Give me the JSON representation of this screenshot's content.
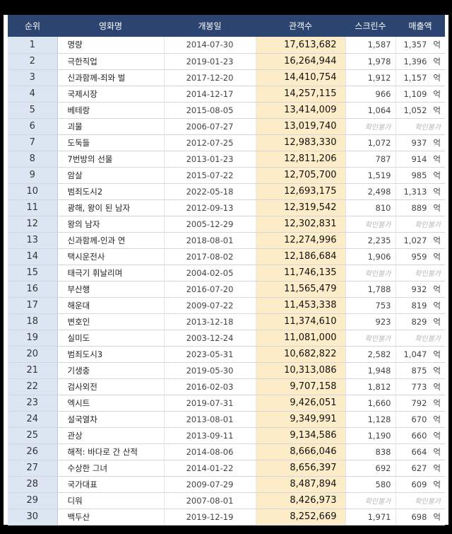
{
  "headers": {
    "rank": "순위",
    "title": "영화명",
    "release": "개봉일",
    "audience": "관객수",
    "screens": "스크린수",
    "revenue": "매출액"
  },
  "revenue_unit": "억",
  "not_confirmed": "확인불가",
  "colors": {
    "header_bg": "#2c4470",
    "rank_col_bg": "#dce6f2",
    "audience_col_bg": "#fdecc8"
  },
  "rows": [
    {
      "rank": "1",
      "title": "명량",
      "release": "2014-07-30",
      "audience": "17,613,682",
      "screens": "1,587",
      "revenue": "1,357"
    },
    {
      "rank": "2",
      "title": "극한직업",
      "release": "2019-01-23",
      "audience": "16,264,944",
      "screens": "1,978",
      "revenue": "1,396"
    },
    {
      "rank": "3",
      "title": "신과함께-죄와 벌",
      "release": "2017-12-20",
      "audience": "14,410,754",
      "screens": "1,912",
      "revenue": "1,157"
    },
    {
      "rank": "4",
      "title": "국제시장",
      "release": "2014-12-17",
      "audience": "14,257,115",
      "screens": "966",
      "revenue": "1,109"
    },
    {
      "rank": "5",
      "title": "베테랑",
      "release": "2015-08-05",
      "audience": "13,414,009",
      "screens": "1,064",
      "revenue": "1,052"
    },
    {
      "rank": "6",
      "title": "괴물",
      "release": "2006-07-27",
      "audience": "13,019,740",
      "screens": null,
      "revenue": null
    },
    {
      "rank": "7",
      "title": "도둑들",
      "release": "2012-07-25",
      "audience": "12,983,330",
      "screens": "1,072",
      "revenue": "937"
    },
    {
      "rank": "8",
      "title": "7번방의 선물",
      "release": "2013-01-23",
      "audience": "12,811,206",
      "screens": "787",
      "revenue": "914"
    },
    {
      "rank": "9",
      "title": "암살",
      "release": "2015-07-22",
      "audience": "12,705,700",
      "screens": "1,519",
      "revenue": "985"
    },
    {
      "rank": "10",
      "title": "범죄도시2",
      "release": "2022-05-18",
      "audience": "12,693,175",
      "screens": "2,498",
      "revenue": "1,313"
    },
    {
      "rank": "11",
      "title": "광해, 왕이 된 남자",
      "release": "2012-09-13",
      "audience": "12,319,542",
      "screens": "810",
      "revenue": "889"
    },
    {
      "rank": "12",
      "title": "왕의 남자",
      "release": "2005-12-29",
      "audience": "12,302,831",
      "screens": null,
      "revenue": null
    },
    {
      "rank": "13",
      "title": "신과함께-인과 연",
      "release": "2018-08-01",
      "audience": "12,274,996",
      "screens": "2,235",
      "revenue": "1,027"
    },
    {
      "rank": "14",
      "title": "택시운전사",
      "release": "2017-08-02",
      "audience": "12,186,684",
      "screens": "1,906",
      "revenue": "959"
    },
    {
      "rank": "15",
      "title": "태극기 휘날리며",
      "release": "2004-02-05",
      "audience": "11,746,135",
      "screens": null,
      "revenue": null
    },
    {
      "rank": "16",
      "title": "부산행",
      "release": "2016-07-20",
      "audience": "11,565,479",
      "screens": "1,788",
      "revenue": "932"
    },
    {
      "rank": "17",
      "title": "해운대",
      "release": "2009-07-22",
      "audience": "11,453,338",
      "screens": "753",
      "revenue": "819"
    },
    {
      "rank": "18",
      "title": "변호인",
      "release": "2013-12-18",
      "audience": "11,374,610",
      "screens": "923",
      "revenue": "829"
    },
    {
      "rank": "19",
      "title": "실미도",
      "release": "2003-12-24",
      "audience": "11,081,000",
      "screens": null,
      "revenue": null
    },
    {
      "rank": "20",
      "title": "범죄도시3",
      "release": "2023-05-31",
      "audience": "10,682,822",
      "screens": "2,582",
      "revenue": "1,047"
    },
    {
      "rank": "21",
      "title": "기생충",
      "release": "2019-05-30",
      "audience": "10,313,086",
      "screens": "1,948",
      "revenue": "875"
    },
    {
      "rank": "22",
      "title": "검사외전",
      "release": "2016-02-03",
      "audience": "9,707,158",
      "screens": "1,812",
      "revenue": "773"
    },
    {
      "rank": "23",
      "title": "엑시트",
      "release": "2019-07-31",
      "audience": "9,426,051",
      "screens": "1,660",
      "revenue": "792"
    },
    {
      "rank": "24",
      "title": "설국열차",
      "release": "2013-08-01",
      "audience": "9,349,991",
      "screens": "1,128",
      "revenue": "670"
    },
    {
      "rank": "25",
      "title": "관상",
      "release": "2013-09-11",
      "audience": "9,134,586",
      "screens": "1,190",
      "revenue": "660"
    },
    {
      "rank": "26",
      "title": "해적: 바다로 간 산적",
      "release": "2014-08-06",
      "audience": "8,666,046",
      "screens": "838",
      "revenue": "664"
    },
    {
      "rank": "27",
      "title": "수상한 그녀",
      "release": "2014-01-22",
      "audience": "8,656,397",
      "screens": "692",
      "revenue": "627"
    },
    {
      "rank": "28",
      "title": "국가대표",
      "release": "2009-07-29",
      "audience": "8,487,894",
      "screens": "580",
      "revenue": "609"
    },
    {
      "rank": "29",
      "title": "디워",
      "release": "2007-08-01",
      "audience": "8,426,973",
      "screens": null,
      "revenue": null
    },
    {
      "rank": "30",
      "title": "백두산",
      "release": "2019-12-19",
      "audience": "8,252,669",
      "screens": "1,971",
      "revenue": "698"
    }
  ]
}
